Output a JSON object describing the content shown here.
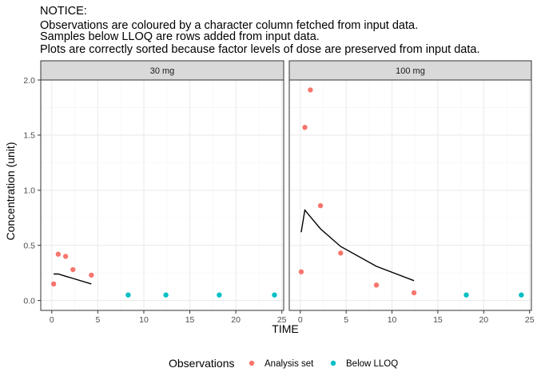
{
  "notice": {
    "lines": [
      "NOTICE:",
      "Observations are coloured by a character column fetched from input data.",
      "Samples below LLOQ are rows added from input data.",
      "Plots are correctly sorted because factor levels of dose are preserved from input data."
    ]
  },
  "colors": {
    "analysis_set": "#F8766D",
    "below_lloq": "#00BFC4",
    "line": "#000000",
    "strip_fill": "#D9D9D9",
    "panel_border": "#333333",
    "grid_major": "#EBEBEB",
    "grid_minor": "#F5F5F5"
  },
  "chart_data": {
    "type": "scatter",
    "xlabel": "TIME",
    "ylabel": "Concentration (unit)",
    "xlim": [
      -1.2,
      25.2
    ],
    "ylim": [
      -0.09,
      2.0
    ],
    "x_ticks": [
      0,
      5,
      10,
      15,
      20,
      25
    ],
    "x_tick_labels": [
      "0",
      "5",
      "10",
      "15",
      "20",
      "25"
    ],
    "y_ticks": [
      0.0,
      0.5,
      1.0,
      1.5,
      2.0
    ],
    "y_tick_labels": [
      "0.0",
      "0.5",
      "1.0",
      "1.5",
      "2.0"
    ],
    "grid": true,
    "legend": {
      "title": "Observations",
      "position": "bottom",
      "entries": [
        {
          "label": "Analysis set",
          "color_key": "analysis_set"
        },
        {
          "label": "Below LLOQ",
          "color_key": "below_lloq"
        }
      ]
    },
    "panels": [
      {
        "strip": "30 mg",
        "points": [
          {
            "x": 0.2,
            "y": 0.15,
            "group": "analysis_set"
          },
          {
            "x": 0.7,
            "y": 0.42,
            "group": "analysis_set"
          },
          {
            "x": 1.5,
            "y": 0.4,
            "group": "analysis_set"
          },
          {
            "x": 2.3,
            "y": 0.28,
            "group": "analysis_set"
          },
          {
            "x": 4.3,
            "y": 0.23,
            "group": "analysis_set"
          },
          {
            "x": 8.3,
            "y": 0.05,
            "group": "below_lloq"
          },
          {
            "x": 12.4,
            "y": 0.05,
            "group": "below_lloq"
          },
          {
            "x": 18.2,
            "y": 0.05,
            "group": "below_lloq"
          },
          {
            "x": 24.2,
            "y": 0.05,
            "group": "below_lloq"
          }
        ],
        "line": [
          {
            "x": 0.2,
            "y": 0.24
          },
          {
            "x": 0.7,
            "y": 0.24
          },
          {
            "x": 1.5,
            "y": 0.22
          },
          {
            "x": 2.3,
            "y": 0.2
          },
          {
            "x": 4.3,
            "y": 0.15
          }
        ]
      },
      {
        "strip": "100 mg",
        "points": [
          {
            "x": 0.1,
            "y": 0.26,
            "group": "analysis_set"
          },
          {
            "x": 0.5,
            "y": 1.57,
            "group": "analysis_set"
          },
          {
            "x": 1.1,
            "y": 1.91,
            "group": "analysis_set"
          },
          {
            "x": 2.2,
            "y": 0.86,
            "group": "analysis_set"
          },
          {
            "x": 4.4,
            "y": 0.43,
            "group": "analysis_set"
          },
          {
            "x": 8.3,
            "y": 0.14,
            "group": "analysis_set"
          },
          {
            "x": 12.4,
            "y": 0.07,
            "group": "analysis_set"
          },
          {
            "x": 18.1,
            "y": 0.05,
            "group": "below_lloq"
          },
          {
            "x": 24.1,
            "y": 0.05,
            "group": "below_lloq"
          }
        ],
        "line": [
          {
            "x": 0.1,
            "y": 0.62
          },
          {
            "x": 0.5,
            "y": 0.82
          },
          {
            "x": 1.1,
            "y": 0.76
          },
          {
            "x": 2.2,
            "y": 0.65
          },
          {
            "x": 4.4,
            "y": 0.49
          },
          {
            "x": 8.3,
            "y": 0.31
          },
          {
            "x": 12.4,
            "y": 0.18
          }
        ]
      }
    ]
  }
}
